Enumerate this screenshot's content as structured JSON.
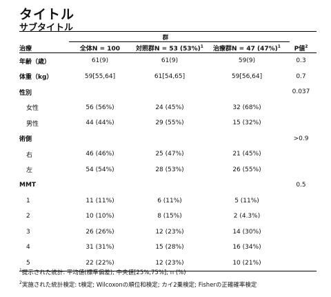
{
  "title": "タイトル",
  "subtitle": "サブタイトル",
  "group_header": "群",
  "columns": {
    "treatment": "治療",
    "total": "全体N = 100",
    "control": "対照群N = 53 (53%)",
    "control_sup": "1",
    "treated": "治療群N = 47 (47%)",
    "treated_sup": "1",
    "pvalue": "P値",
    "pvalue_sup": "2"
  },
  "rows": [
    {
      "label": "年齢（歳）",
      "type": "var",
      "total": "61(9)",
      "control": "61(9)",
      "treated": "59(9)",
      "p": "0.3"
    },
    {
      "label": "体重（kg）",
      "type": "var",
      "total": "59[55,64]",
      "control": "61[54,65]",
      "treated": "59[56,64]",
      "p": "0.7"
    },
    {
      "label": "性別",
      "type": "var",
      "total": "",
      "control": "",
      "treated": "",
      "p": "0.037"
    },
    {
      "label": "女性",
      "type": "level",
      "total": "56 (56%)",
      "control": "24 (45%)",
      "treated": "32 (68%)",
      "p": ""
    },
    {
      "label": "男性",
      "type": "level",
      "total": "44 (44%)",
      "control": "29 (55%)",
      "treated": "15 (32%)",
      "p": ""
    },
    {
      "label": "術側",
      "type": "var",
      "total": "",
      "control": "",
      "treated": "",
      "p": ">0.9"
    },
    {
      "label": "右",
      "type": "level",
      "total": "46 (46%)",
      "control": "25 (47%)",
      "treated": "21 (45%)",
      "p": ""
    },
    {
      "label": "左",
      "type": "level",
      "total": "54 (54%)",
      "control": "28 (53%)",
      "treated": "26 (55%)",
      "p": ""
    },
    {
      "label": "MMT",
      "type": "var",
      "total": "",
      "control": "",
      "treated": "",
      "p": "0.5"
    },
    {
      "label": "1",
      "type": "level",
      "total": "11 (11%)",
      "control": "6 (11%)",
      "treated": "5 (11%)",
      "p": ""
    },
    {
      "label": "2",
      "type": "level",
      "total": "10 (10%)",
      "control": "8 (15%)",
      "treated": "2 (4.3%)",
      "p": ""
    },
    {
      "label": "3",
      "type": "level",
      "total": "26 (26%)",
      "control": "12 (23%)",
      "treated": "14 (30%)",
      "p": ""
    },
    {
      "label": "4",
      "type": "level",
      "total": "31 (31%)",
      "control": "15 (28%)",
      "treated": "16 (34%)",
      "p": ""
    },
    {
      "label": "5",
      "type": "level",
      "total": "22 (22%)",
      "control": "12 (23%)",
      "treated": "10 (21%)",
      "p": ""
    }
  ],
  "footnotes": {
    "note1_mark": "1",
    "note1_text": "提示された統計: 平均値(標準偏差); 中央値[25%,75%]; n (%)",
    "note2_mark": "2",
    "note2_text": "実施された統計検定: t検定; Wilcoxonの順位和検定; カイ2乗検定; Fisherの正確確率検定"
  }
}
